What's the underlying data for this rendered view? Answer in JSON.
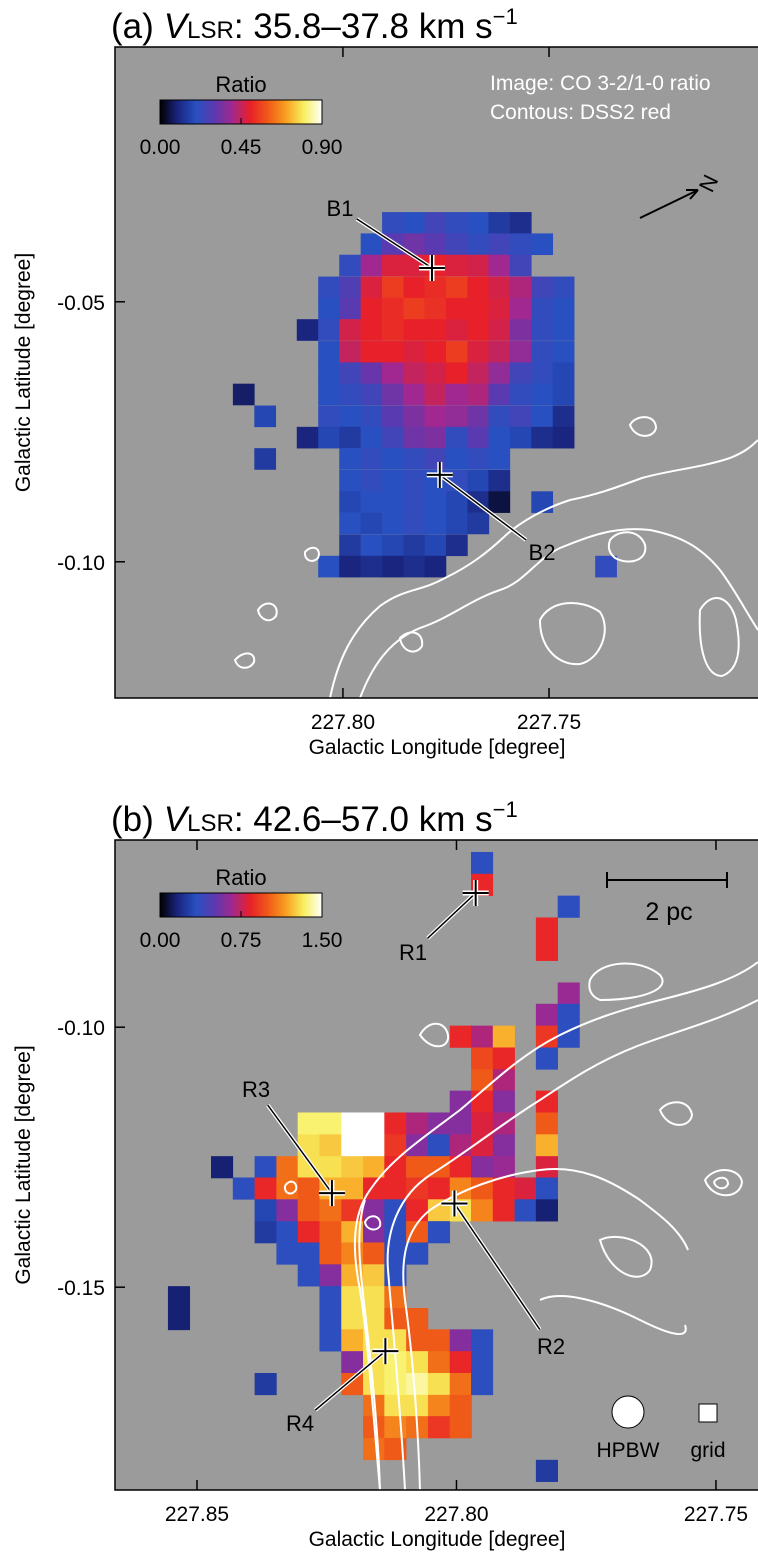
{
  "chart_data": [
    {
      "type": "heatmap",
      "title_prefix": "(a)",
      "title_var": "V",
      "title_sub": "LSR",
      "title_rest": ": 35.8–37.8 km s",
      "title_sup": "−1",
      "xlabel": "Galactic Longitude [degree]",
      "ylabel": "Galactic Latitude [degree]",
      "xlim": [
        227.8553,
        227.6993
      ],
      "ylim": [
        -0.1262,
        -0.001
      ],
      "xticks": [
        {
          "value": 227.8,
          "label": "227.80"
        },
        {
          "value": 227.75,
          "label": "227.75"
        }
      ],
      "yticks": [
        {
          "value": -0.05,
          "label": "-0.05"
        },
        {
          "value": -0.1,
          "label": "-0.10"
        }
      ],
      "colorbar_label": "Ratio",
      "clim": [
        0,
        0.9
      ],
      "cticks": [
        {
          "value": 0,
          "label": "0.00"
        },
        {
          "value": 0.45,
          "label": "0.45"
        },
        {
          "value": 0.9,
          "label": "0.90"
        }
      ],
      "colormap": [
        "#000000",
        "#1a2580",
        "#2850c0",
        "#5a3ab0",
        "#a02890",
        "#e8202a",
        "#f05a18",
        "#f8a020",
        "#f8f060",
        "#ffffff"
      ],
      "background": "#9b9b9b",
      "annotations": [
        "Image: CO 3-2/1-0 ratio",
        "Contous: DSS2 red"
      ],
      "north_label": "N",
      "x": [
        227.8241,
        227.8189,
        227.8138,
        227.8086,
        227.8034,
        227.7983,
        227.7931,
        227.7879,
        227.7827,
        227.7776,
        227.7724,
        227.7672,
        227.7621,
        227.7569,
        227.7517,
        227.7465,
        227.7414,
        227.7362
      ],
      "y": [
        -0.0348,
        -0.0389,
        -0.043,
        -0.0472,
        -0.0513,
        -0.0554,
        -0.0596,
        -0.0637,
        -0.0678,
        -0.072,
        -0.0761,
        -0.0802,
        -0.0844,
        -0.0885,
        -0.0926,
        -0.0968,
        -0.1009
      ],
      "z": [
        [
          null,
          null,
          null,
          null,
          null,
          null,
          null,
          0.22,
          0.2,
          0.25,
          0.22,
          0.2,
          0.15,
          0.12,
          null,
          null,
          null,
          null
        ],
        [
          null,
          null,
          null,
          null,
          null,
          null,
          0.2,
          0.3,
          0.33,
          0.3,
          0.25,
          0.22,
          0.25,
          0.22,
          0.2,
          null,
          null,
          null
        ],
        [
          null,
          null,
          null,
          null,
          null,
          0.22,
          0.4,
          0.48,
          0.48,
          0.5,
          0.48,
          0.47,
          0.4,
          0.25,
          null,
          null,
          null,
          null
        ],
        [
          null,
          null,
          null,
          null,
          0.22,
          0.28,
          0.48,
          0.55,
          0.5,
          0.52,
          0.55,
          0.5,
          0.47,
          0.42,
          0.25,
          0.22,
          null,
          null
        ],
        [
          null,
          null,
          null,
          null,
          0.2,
          0.3,
          0.5,
          0.52,
          0.55,
          0.53,
          0.5,
          0.5,
          0.48,
          0.4,
          0.22,
          0.2,
          null,
          null
        ],
        [
          null,
          null,
          null,
          0.1,
          0.22,
          0.47,
          0.5,
          0.52,
          0.5,
          0.5,
          0.48,
          0.5,
          0.47,
          0.35,
          0.22,
          0.2,
          null,
          null
        ],
        [
          null,
          null,
          null,
          null,
          0.2,
          0.45,
          0.5,
          0.5,
          0.48,
          0.5,
          0.55,
          0.48,
          0.45,
          0.38,
          0.22,
          0.2,
          null,
          null
        ],
        [
          null,
          null,
          null,
          null,
          0.2,
          0.25,
          0.32,
          0.4,
          0.45,
          0.47,
          0.5,
          0.45,
          0.38,
          0.25,
          0.22,
          0.18,
          null,
          null
        ],
        [
          0.08,
          null,
          null,
          null,
          0.2,
          0.22,
          0.25,
          0.33,
          0.4,
          0.45,
          0.4,
          0.42,
          0.3,
          0.22,
          0.2,
          0.18,
          null,
          null
        ],
        [
          null,
          0.18,
          null,
          null,
          0.22,
          0.2,
          0.22,
          0.3,
          0.35,
          0.4,
          0.38,
          0.33,
          0.22,
          0.25,
          0.2,
          0.12,
          null,
          null
        ],
        [
          null,
          null,
          null,
          0.1,
          0.18,
          0.15,
          0.2,
          0.25,
          0.33,
          0.35,
          0.22,
          0.3,
          0.2,
          0.18,
          0.12,
          0.1,
          null,
          null
        ],
        [
          null,
          0.15,
          null,
          null,
          null,
          0.2,
          0.22,
          0.2,
          0.22,
          0.25,
          0.2,
          0.22,
          0.2,
          null,
          null,
          null,
          null,
          null
        ],
        [
          null,
          null,
          null,
          null,
          null,
          0.2,
          0.22,
          0.2,
          0.22,
          0.2,
          0.22,
          0.18,
          0.12,
          null,
          null,
          null,
          null,
          null
        ],
        [
          null,
          null,
          null,
          null,
          null,
          0.18,
          0.2,
          0.2,
          0.22,
          0.2,
          0.18,
          0.12,
          0.05,
          null,
          0.18,
          null,
          null,
          null
        ],
        [
          null,
          null,
          null,
          null,
          null,
          0.2,
          0.18,
          0.2,
          0.22,
          0.2,
          0.18,
          0.15,
          null,
          null,
          null,
          null,
          null,
          null
        ],
        [
          null,
          null,
          null,
          null,
          null,
          0.15,
          0.2,
          0.18,
          0.15,
          0.18,
          0.12,
          null,
          null,
          null,
          null,
          null,
          null,
          null
        ],
        [
          null,
          null,
          null,
          null,
          0.2,
          0.1,
          0.12,
          0.1,
          0.12,
          0.1,
          null,
          null,
          null,
          null,
          null,
          null,
          null,
          0.22
        ]
      ],
      "markers": [
        {
          "label": "B1",
          "x": 227.7784,
          "y": -0.0435
        },
        {
          "label": "B2",
          "x": 227.7765,
          "y": -0.0833
        }
      ]
    },
    {
      "type": "heatmap",
      "title_prefix": "(b)",
      "title_var": "V",
      "title_sub": "LSR",
      "title_rest": ": 42.6–57.0 km s",
      "title_sup": "−1",
      "xlabel": "Galactic Longitude [degree]",
      "ylabel": "Galactic Latitude [degree]",
      "xlim": [
        227.8658,
        227.7419
      ],
      "ylim": [
        -0.189,
        -0.064
      ],
      "xticks": [
        {
          "value": 227.85,
          "label": "227.85"
        },
        {
          "value": 227.8,
          "label": "227.80"
        },
        {
          "value": 227.75,
          "label": "227.75"
        }
      ],
      "yticks": [
        {
          "value": -0.1,
          "label": "-0.10"
        },
        {
          "value": -0.15,
          "label": "-0.15"
        }
      ],
      "colorbar_label": "Ratio",
      "clim": [
        0,
        1.5
      ],
      "cticks": [
        {
          "value": 0,
          "label": "0.00"
        },
        {
          "value": 0.75,
          "label": "0.75"
        },
        {
          "value": 1.5,
          "label": "1.50"
        }
      ],
      "colormap": [
        "#000000",
        "#1a2580",
        "#2850c0",
        "#5a3ab0",
        "#a02890",
        "#e8202a",
        "#f05a18",
        "#f8a020",
        "#f8f060",
        "#ffffff"
      ],
      "background": "#9b9b9b",
      "scalebar_label": "2 pc",
      "beam_label": "HPBW",
      "grid_label": "grid",
      "x": [
        227.8535,
        227.8493,
        227.8452,
        227.841,
        227.8368,
        227.8326,
        227.8285,
        227.8243,
        227.8201,
        227.8159,
        227.8118,
        227.8076,
        227.8034,
        227.7992,
        227.7951,
        227.7909,
        227.7867,
        227.7826,
        227.7784
      ],
      "y": [
        -0.0684,
        -0.0726,
        -0.0768,
        -0.081,
        -0.0851,
        -0.0893,
        -0.0935,
        -0.0976,
        -0.1018,
        -0.106,
        -0.1102,
        -0.1143,
        -0.1185,
        -0.1227,
        -0.1269,
        -0.131,
        -0.1352,
        -0.1394,
        -0.1435,
        -0.1477,
        -0.1519,
        -0.1561,
        -0.1602,
        -0.1644,
        -0.1686,
        -0.1728,
        -0.1769,
        -0.1811,
        -0.1853
      ],
      "z": [
        [
          null,
          null,
          null,
          null,
          null,
          null,
          null,
          null,
          null,
          null,
          null,
          null,
          null,
          null,
          0.35,
          null,
          null,
          null,
          null
        ],
        [
          null,
          null,
          null,
          null,
          null,
          null,
          null,
          null,
          null,
          null,
          null,
          null,
          null,
          null,
          0.85,
          null,
          null,
          null,
          null
        ],
        [
          null,
          null,
          null,
          null,
          null,
          null,
          null,
          null,
          null,
          null,
          null,
          null,
          null,
          null,
          null,
          null,
          null,
          null,
          0.35
        ],
        [
          null,
          null,
          null,
          null,
          null,
          null,
          null,
          null,
          null,
          null,
          null,
          null,
          null,
          null,
          null,
          null,
          null,
          0.85,
          null
        ],
        [
          null,
          null,
          null,
          null,
          null,
          null,
          null,
          null,
          null,
          null,
          null,
          null,
          null,
          null,
          null,
          null,
          null,
          0.85,
          null
        ],
        [
          null,
          null,
          null,
          null,
          null,
          null,
          null,
          null,
          null,
          null,
          null,
          null,
          null,
          null,
          null,
          null,
          null,
          null,
          null
        ],
        [
          null,
          null,
          null,
          null,
          null,
          null,
          null,
          null,
          null,
          null,
          null,
          null,
          null,
          null,
          null,
          null,
          null,
          null,
          0.65
        ],
        [
          null,
          null,
          null,
          null,
          null,
          null,
          null,
          null,
          null,
          null,
          null,
          null,
          null,
          null,
          null,
          null,
          null,
          0.65,
          0.35
        ],
        [
          null,
          null,
          null,
          null,
          null,
          null,
          null,
          null,
          null,
          null,
          null,
          null,
          null,
          0.85,
          0.7,
          1.2,
          null,
          0.9,
          0.35
        ],
        [
          null,
          null,
          null,
          null,
          null,
          null,
          null,
          null,
          null,
          null,
          null,
          null,
          null,
          null,
          0.95,
          0.85,
          null,
          0.35,
          null
        ],
        [
          null,
          null,
          null,
          null,
          null,
          null,
          null,
          null,
          null,
          null,
          null,
          null,
          null,
          null,
          1.0,
          0.7,
          null,
          null,
          null
        ],
        [
          null,
          null,
          null,
          null,
          null,
          null,
          null,
          null,
          null,
          null,
          null,
          null,
          null,
          0.6,
          0.85,
          0.6,
          null,
          0.85,
          null
        ],
        [
          null,
          null,
          null,
          null,
          null,
          null,
          1.35,
          1.35,
          1.5,
          1.5,
          0.85,
          0.7,
          0.6,
          0.6,
          0.8,
          0.7,
          null,
          1.0,
          null
        ],
        [
          null,
          null,
          null,
          null,
          null,
          null,
          1.3,
          1.25,
          1.5,
          1.5,
          0.9,
          0.6,
          0.35,
          0.7,
          0.8,
          0.6,
          null,
          1.2,
          null
        ],
        [
          null,
          null,
          0.15,
          null,
          0.35,
          1.05,
          1.3,
          1.3,
          1.25,
          1.2,
          0.85,
          1.0,
          1.0,
          0.85,
          0.6,
          0.65,
          null,
          0.8,
          null
        ],
        [
          null,
          null,
          null,
          0.35,
          0.85,
          1.05,
          1.0,
          1.2,
          1.2,
          0.85,
          0.85,
          0.9,
          0.85,
          1.1,
          1.0,
          0.85,
          0.8,
          0.35,
          null
        ],
        [
          null,
          null,
          null,
          null,
          0.3,
          0.6,
          1.0,
          1.05,
          0.9,
          0.6,
          0.35,
          0.85,
          1.25,
          1.3,
          1.1,
          0.85,
          0.35,
          0.15,
          null
        ],
        [
          null,
          null,
          null,
          null,
          0.25,
          0.35,
          0.85,
          1.0,
          1.2,
          0.6,
          0.35,
          1.0,
          0.35,
          null,
          null,
          null,
          null,
          null,
          null
        ],
        [
          null,
          null,
          null,
          null,
          null,
          0.35,
          0.35,
          1.0,
          1.1,
          1.0,
          0.35,
          0.35,
          null,
          null,
          null,
          null,
          null,
          null,
          null
        ],
        [
          null,
          null,
          null,
          null,
          null,
          null,
          0.35,
          0.6,
          1.2,
          1.25,
          0.35,
          null,
          null,
          null,
          null,
          null,
          null,
          null,
          null
        ],
        [
          0.15,
          null,
          null,
          null,
          null,
          null,
          null,
          0.35,
          1.3,
          1.3,
          1.05,
          null,
          null,
          null,
          null,
          null,
          null,
          null,
          null
        ],
        [
          0.15,
          null,
          null,
          null,
          null,
          null,
          null,
          0.35,
          1.3,
          1.3,
          1.0,
          1.0,
          null,
          null,
          null,
          null,
          null,
          null,
          null
        ],
        [
          null,
          null,
          null,
          null,
          null,
          null,
          null,
          0.35,
          1.2,
          1.3,
          1.3,
          1.0,
          1.0,
          0.6,
          0.35,
          null,
          null,
          null,
          null
        ],
        [
          null,
          null,
          null,
          null,
          null,
          null,
          null,
          null,
          0.6,
          1.3,
          1.35,
          1.3,
          1.05,
          0.85,
          0.35,
          null,
          null,
          null,
          null
        ],
        [
          null,
          null,
          null,
          null,
          0.25,
          null,
          null,
          null,
          1.0,
          1.3,
          1.35,
          1.4,
          1.3,
          1.05,
          0.35,
          null,
          null,
          null,
          null
        ],
        [
          null,
          null,
          null,
          null,
          null,
          null,
          null,
          null,
          null,
          1.05,
          1.3,
          1.3,
          1.1,
          1.0,
          null,
          null,
          null,
          null,
          null
        ],
        [
          null,
          null,
          null,
          null,
          null,
          null,
          null,
          null,
          null,
          1.0,
          1.1,
          1.05,
          0.9,
          1.0,
          null,
          null,
          null,
          null,
          null
        ],
        [
          null,
          null,
          null,
          null,
          null,
          null,
          null,
          null,
          null,
          1.05,
          1.0,
          null,
          null,
          null,
          null,
          null,
          null,
          null,
          null
        ],
        [
          null,
          null,
          null,
          null,
          null,
          null,
          null,
          null,
          null,
          null,
          null,
          null,
          null,
          null,
          null,
          null,
          null,
          0.25,
          null
        ]
      ],
      "markers": [
        {
          "label": "R1",
          "x": 227.7963,
          "y": -0.0742
        },
        {
          "label": "R2",
          "x": 227.8004,
          "y": -0.1339
        },
        {
          "label": "R3",
          "x": 227.824,
          "y": -0.1319
        },
        {
          "label": "R4",
          "x": 227.8137,
          "y": -0.1623
        }
      ]
    }
  ]
}
